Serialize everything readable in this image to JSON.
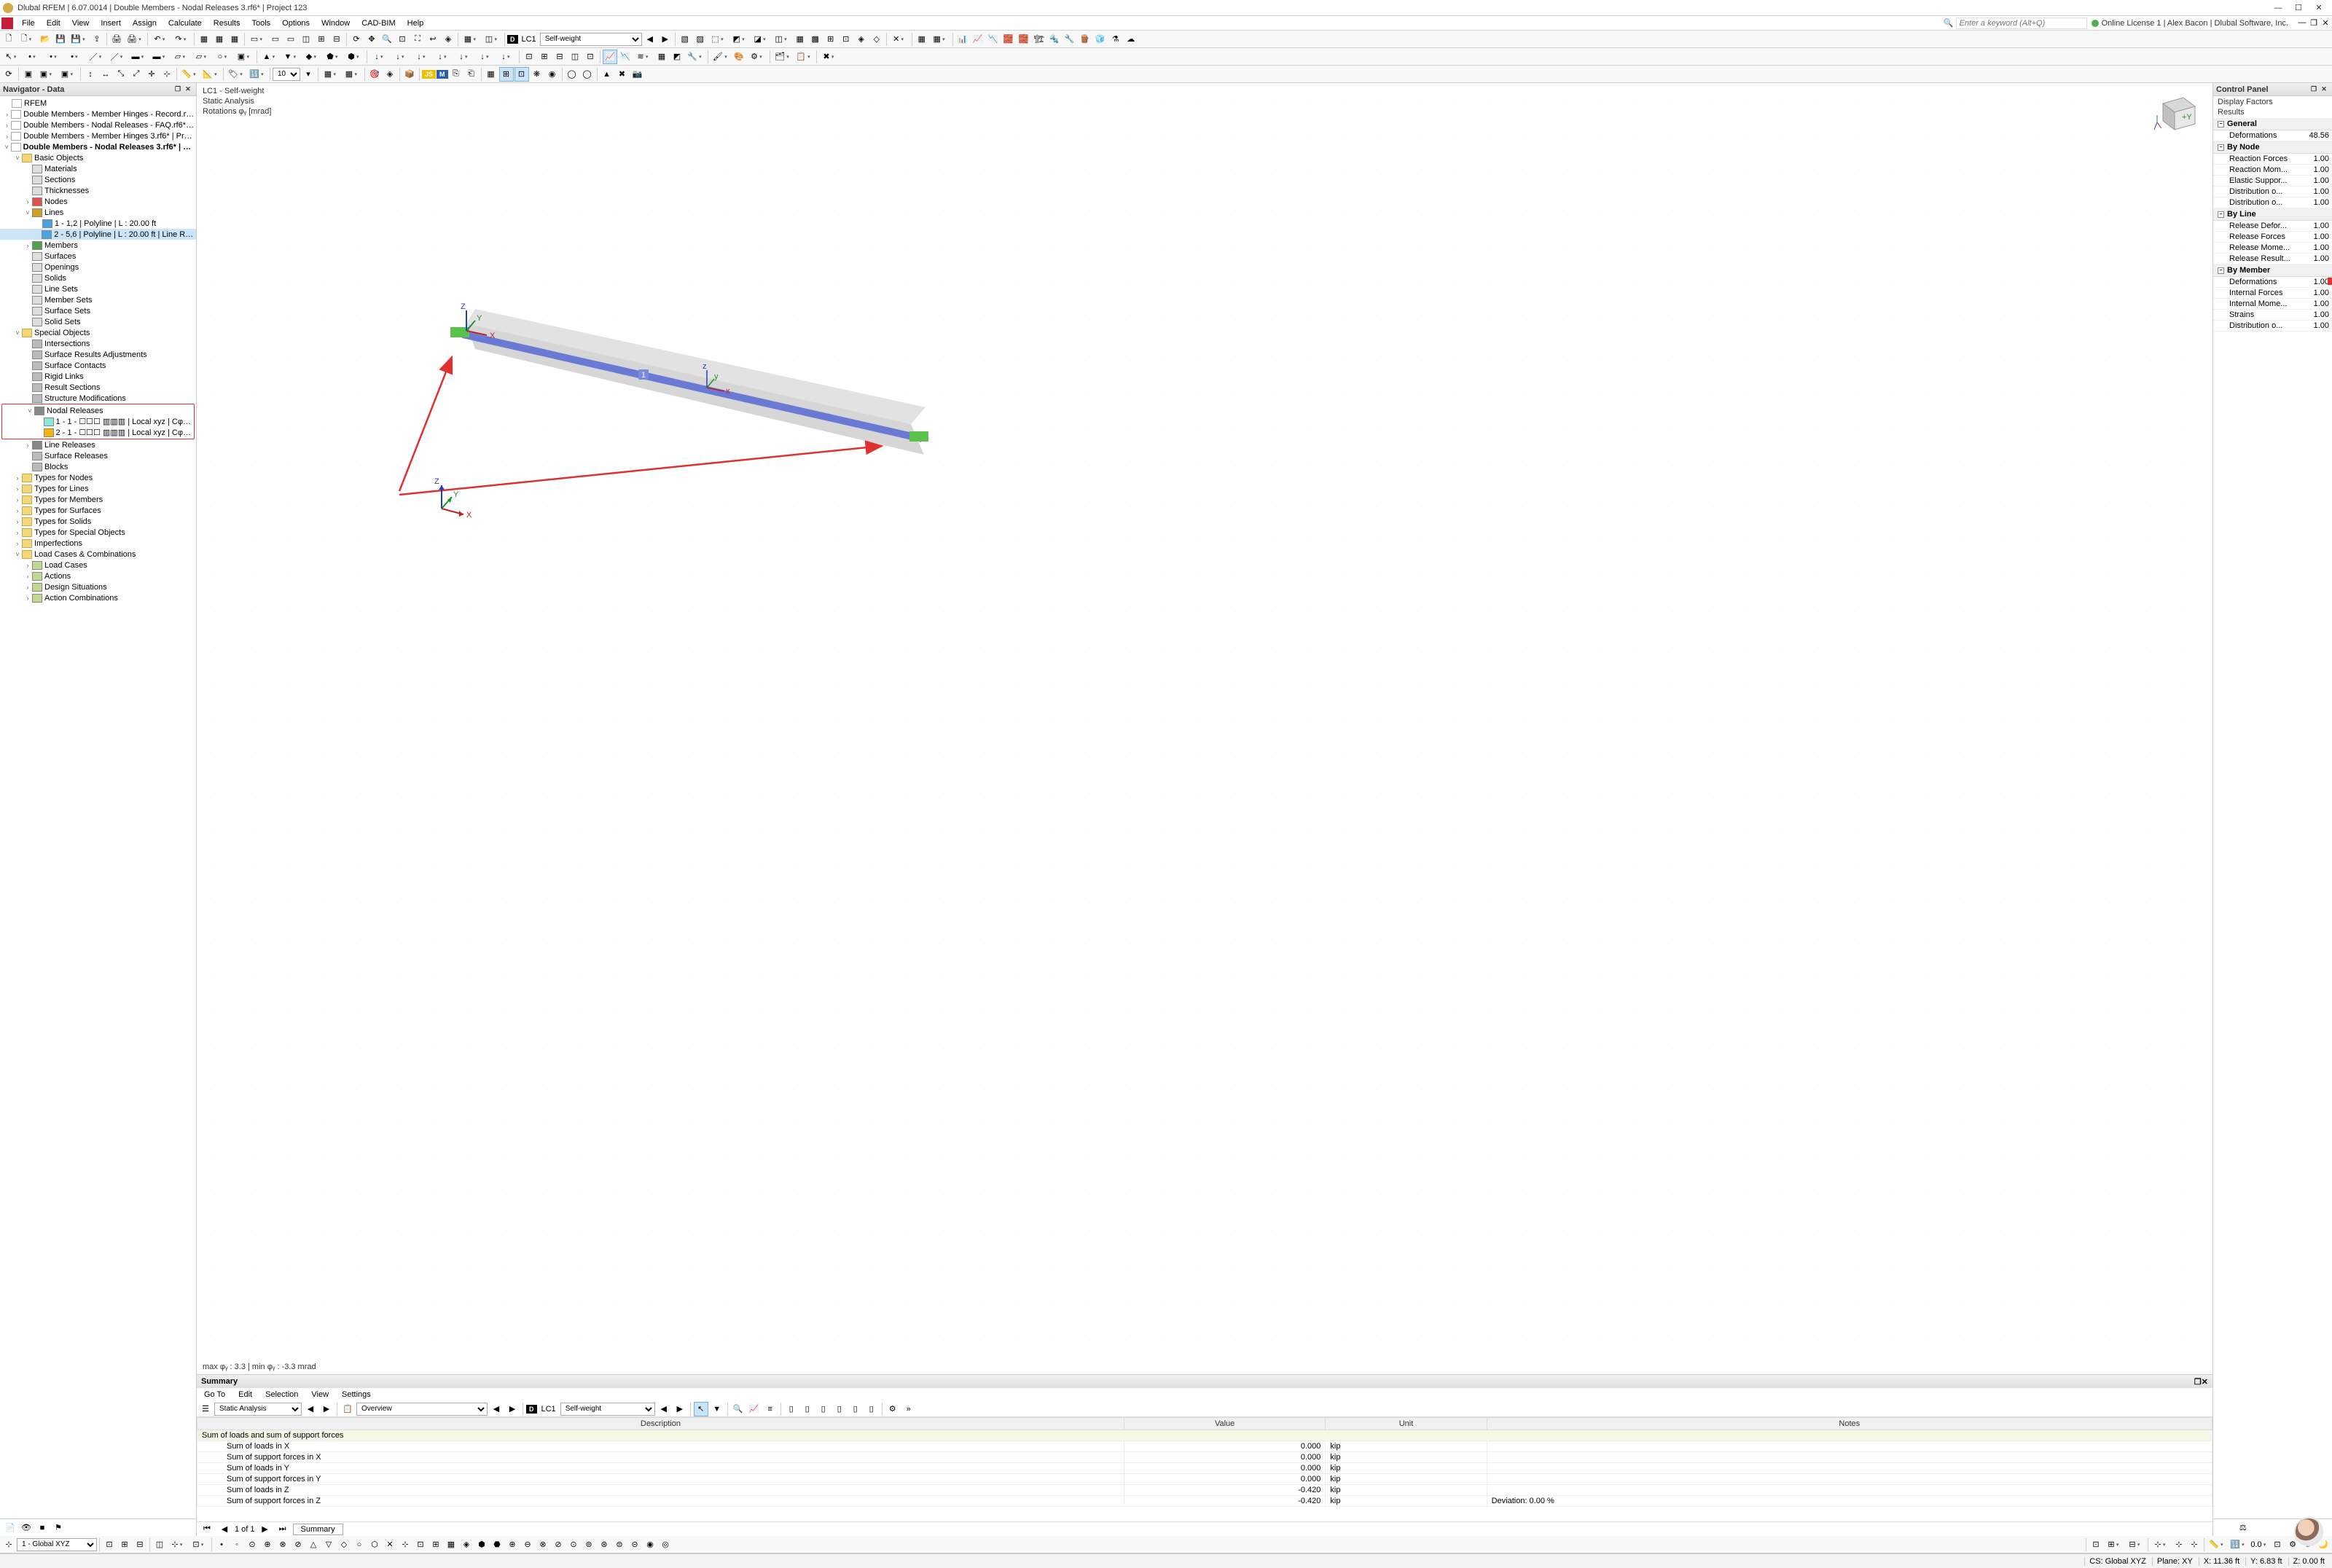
{
  "window": {
    "title": "Dlubal RFEM | 6.07.0014 | Double Members - Nodal Releases 3.rf6* | Project 123",
    "minimize": "—",
    "maximize": "☐",
    "close": "✕"
  },
  "menu": {
    "items": [
      "File",
      "Edit",
      "View",
      "Insert",
      "Assign",
      "Calculate",
      "Results",
      "Tools",
      "Options",
      "Window",
      "CAD-BIM",
      "Help"
    ],
    "keyword_placeholder": "Enter a keyword (Alt+Q)",
    "license": "Online License 1 | Alex Bacon | Dlubal Software, Inc."
  },
  "toolbars": {
    "lc_badge": "D",
    "lc_code": "LC1",
    "lc_name": "Self-weight",
    "js_badge": "JS",
    "m_badge": "M"
  },
  "navigator": {
    "title": "Navigator - Data",
    "root": "RFEM",
    "files": [
      "Double Members - Member Hinges - Record.rf6* | P",
      "Double Members - Nodal Releases - FAQ.rf6* | Proje",
      "Double Members - Member Hinges 3.rf6* | Project 1",
      "Double Members - Nodal Releases 3.rf6* | Project 1"
    ],
    "basic_objects": "Basic Objects",
    "basic_children": [
      "Materials",
      "Sections",
      "Thicknesses",
      "Nodes",
      "Lines",
      "Members",
      "Surfaces",
      "Openings",
      "Solids",
      "Line Sets",
      "Member Sets",
      "Surface Sets",
      "Solid Sets"
    ],
    "lines_children": [
      "1 - 1,2 | Polyline | L : 20.00 ft",
      "2 - 5,6 | Polyline | L : 20.00 ft | Line Releas"
    ],
    "special_objects": "Special Objects",
    "special_children": [
      "Intersections",
      "Surface Results Adjustments",
      "Surface Contacts",
      "Rigid Links",
      "Result Sections",
      "Structure Modifications",
      "Nodal Releases",
      "Line Releases",
      "Surface Releases",
      "Blocks"
    ],
    "nodal_children": [
      "1 - 1 - ☐☐☐  ▥▥▥ | Local xyz | Cφ,x : 0.00",
      "2 - 1 - ☐☐☐  ▥▥▥ | Local xyz | Cφ,x : 0.00"
    ],
    "types_folders": [
      "Types for Nodes",
      "Types for Lines",
      "Types for Members",
      "Types for Surfaces",
      "Types for Solids",
      "Types for Special Objects",
      "Imperfections",
      "Load Cases & Combinations"
    ],
    "lcc_children": [
      "Load Cases",
      "Actions",
      "Design Situations",
      "Action Combinations"
    ]
  },
  "viewport": {
    "line1": "LC1 - Self-weight",
    "line2": "Static Analysis",
    "line3": "Rotations φᵧ [mrad]",
    "member_label": "1",
    "bottom": "max φᵧ : 3.3 | min φᵧ : -3.3 mrad",
    "axes": {
      "x": "X",
      "y": "Y",
      "z": "Z"
    },
    "cube_face": "+Y"
  },
  "summary": {
    "title": "Summary",
    "menu": [
      "Go To",
      "Edit",
      "Selection",
      "View",
      "Settings"
    ],
    "analysis_type": "Static Analysis",
    "overview": "Overview",
    "lc_badge": "D",
    "lc_code": "LC1",
    "lc_name": "Self-weight",
    "columns": [
      "Description",
      "Value",
      "Unit",
      "Notes"
    ],
    "group": "Sum of loads and sum of support forces",
    "rows": [
      {
        "d": "Sum of loads in X",
        "v": "0.000",
        "u": "kip",
        "n": ""
      },
      {
        "d": "Sum of support forces in X",
        "v": "0.000",
        "u": "kip",
        "n": ""
      },
      {
        "d": "Sum of loads in Y",
        "v": "0.000",
        "u": "kip",
        "n": ""
      },
      {
        "d": "Sum of support forces in Y",
        "v": "0.000",
        "u": "kip",
        "n": ""
      },
      {
        "d": "Sum of loads in Z",
        "v": "-0.420",
        "u": "kip",
        "n": ""
      },
      {
        "d": "Sum of support forces in Z",
        "v": "-0.420",
        "u": "kip",
        "n": "Deviation: 0.00 %"
      }
    ],
    "page": "1 of 1",
    "tab": "Summary"
  },
  "control": {
    "title": "Control Panel",
    "display_factors": "Display Factors",
    "results": "Results",
    "sections": {
      "General": [
        {
          "l": "Deformations",
          "v": "48.56"
        }
      ],
      "By Node": [
        {
          "l": "Reaction Forces",
          "v": "1.00"
        },
        {
          "l": "Reaction Mom...",
          "v": "1.00"
        },
        {
          "l": "Elastic Suppor...",
          "v": "1.00"
        },
        {
          "l": "Distribution o...",
          "v": "1.00"
        },
        {
          "l": "Distribution o...",
          "v": "1.00"
        }
      ],
      "By Line": [
        {
          "l": "Release Defor...",
          "v": "1.00"
        },
        {
          "l": "Release Forces",
          "v": "1.00"
        },
        {
          "l": "Release Mome...",
          "v": "1.00"
        },
        {
          "l": "Release Result...",
          "v": "1.00"
        }
      ],
      "By Member": [
        {
          "l": "Deformations",
          "v": "1.00",
          "flag": true
        },
        {
          "l": "Internal Forces",
          "v": "1.00"
        },
        {
          "l": "Internal Mome...",
          "v": "1.00"
        },
        {
          "l": "Strains",
          "v": "1.00"
        },
        {
          "l": "Distribution o...",
          "v": "1.00"
        }
      ]
    }
  },
  "status": {
    "cs_label": "1 - Global XYZ",
    "cs": "CS: Global XYZ",
    "plane": "Plane: XY",
    "x": "X: 11.36 ft",
    "y": "Y: 6.83 ft",
    "z": "Z: 0.00 ft"
  },
  "colors": {
    "blue_line": "#6a7ad4",
    "green_support": "#5ac24b",
    "gray_deform": "#c8c8c8",
    "red_arrow": "#e03030",
    "selected_tree": "#cce4f7",
    "nodal_sq1": "#8ae6d9",
    "nodal_sq2": "#f2b705",
    "line_sq": "#4aa3e0"
  }
}
